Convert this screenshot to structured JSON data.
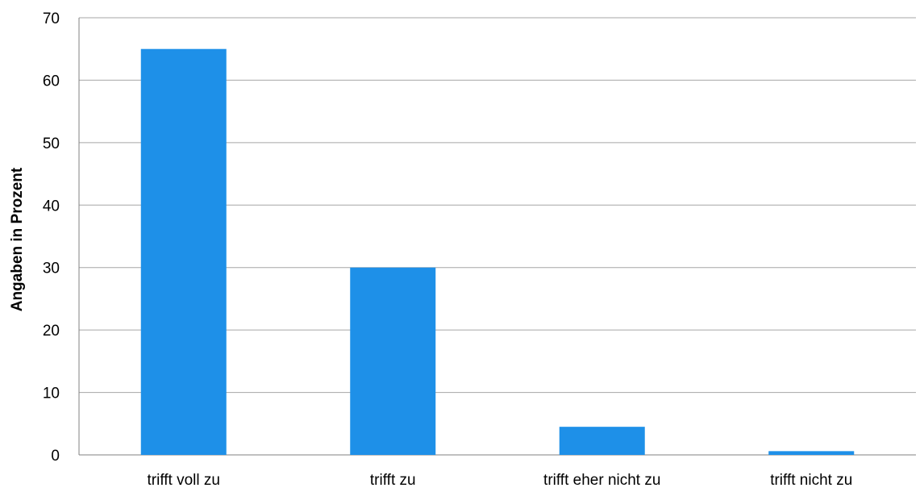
{
  "chart_data": {
    "type": "bar",
    "title": "",
    "xlabel": "",
    "ylabel": "Angaben in Prozent",
    "categories": [
      "trifft voll zu",
      "trifft zu",
      "trifft eher nicht zu",
      "trifft nicht zu"
    ],
    "values": [
      65,
      30,
      4.5,
      0.6
    ],
    "ylim": [
      0,
      70
    ],
    "yticks": [
      0,
      10,
      20,
      30,
      40,
      50,
      60,
      70
    ],
    "grid": true,
    "legend": "none",
    "bar_color": "#1E90E8",
    "grid_color": "#A6A6A6"
  }
}
